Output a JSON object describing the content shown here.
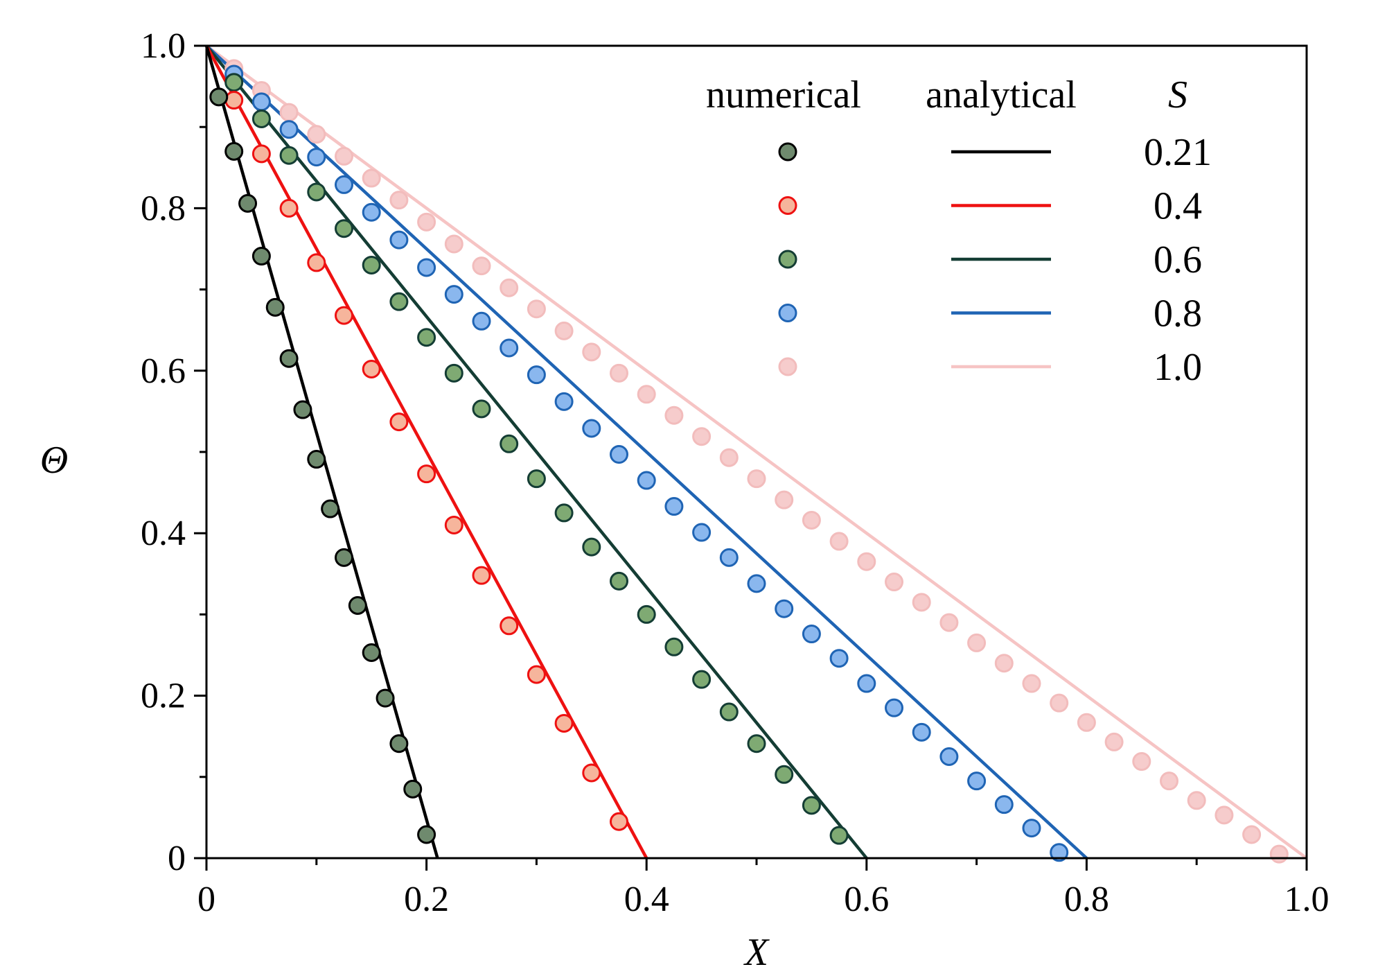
{
  "chart_data": {
    "type": "line",
    "xlabel": "X",
    "ylabel": "Θ",
    "xlim": [
      0,
      1.0
    ],
    "ylim": [
      0,
      1.0
    ],
    "x_major_ticks": [
      0,
      0.2,
      0.4,
      0.6,
      0.8,
      1.0
    ],
    "x_tick_labels": [
      "0",
      "0.2",
      "0.4",
      "0.6",
      "0.8",
      "1.0"
    ],
    "y_major_ticks": [
      0,
      0.2,
      0.4,
      0.6,
      0.8,
      1.0
    ],
    "y_tick_labels": [
      "0",
      "0.2",
      "0.4",
      "0.6",
      "0.8",
      "1.0"
    ],
    "x_minor_step": 0.1,
    "y_minor_step": 0.1,
    "grid": false,
    "legend": {
      "placement": "top-right",
      "headers": [
        "numerical",
        "analytical",
        "S"
      ]
    },
    "series": [
      {
        "S": "0.21",
        "line_color": "#000000",
        "marker_fill": "#6f8a6e",
        "marker_edge": "#000000",
        "analytical": {
          "x": [
            0,
            0.21
          ],
          "y": [
            1.0,
            0
          ]
        },
        "numerical": {
          "x": [
            0.0112,
            0.025,
            0.0375,
            0.05,
            0.0625,
            0.075,
            0.0875,
            0.1,
            0.1125,
            0.125,
            0.1375,
            0.15,
            0.1625,
            0.175,
            0.1875,
            0.2
          ],
          "y": [
            0.937,
            0.87,
            0.806,
            0.741,
            0.678,
            0.615,
            0.552,
            0.491,
            0.43,
            0.37,
            0.311,
            0.253,
            0.197,
            0.141,
            0.085,
            0.029
          ]
        }
      },
      {
        "S": "0.4",
        "line_color": "#ee1111",
        "marker_fill": "#f6b59c",
        "marker_edge": "#ee1111",
        "analytical": {
          "x": [
            0,
            0.4
          ],
          "y": [
            1.0,
            0
          ]
        },
        "numerical": {
          "x": [
            0.025,
            0.05,
            0.075,
            0.1,
            0.125,
            0.15,
            0.175,
            0.2,
            0.225,
            0.25,
            0.275,
            0.3,
            0.325,
            0.35,
            0.375
          ],
          "y": [
            0.933,
            0.867,
            0.8,
            0.733,
            0.668,
            0.602,
            0.537,
            0.473,
            0.41,
            0.348,
            0.286,
            0.226,
            0.166,
            0.105,
            0.045
          ]
        }
      },
      {
        "S": "0.6",
        "line_color": "#143d34",
        "marker_fill": "#7faa73",
        "marker_edge": "#143d34",
        "analytical": {
          "x": [
            0,
            0.6
          ],
          "y": [
            1.0,
            0
          ]
        },
        "numerical": {
          "x": [
            0.025,
            0.05,
            0.075,
            0.1,
            0.125,
            0.15,
            0.175,
            0.2,
            0.225,
            0.25,
            0.275,
            0.3,
            0.325,
            0.35,
            0.375,
            0.4,
            0.425,
            0.45,
            0.475,
            0.5,
            0.525,
            0.55,
            0.575
          ],
          "y": [
            0.955,
            0.91,
            0.865,
            0.82,
            0.775,
            0.73,
            0.685,
            0.641,
            0.597,
            0.553,
            0.51,
            0.467,
            0.425,
            0.383,
            0.341,
            0.3,
            0.26,
            0.22,
            0.18,
            0.141,
            0.103,
            0.065,
            0.028
          ]
        }
      },
      {
        "S": "0.8",
        "line_color": "#1f64b4",
        "marker_fill": "#8ab7ee",
        "marker_edge": "#1f64b4",
        "analytical": {
          "x": [
            0,
            0.8
          ],
          "y": [
            1.0,
            0
          ]
        },
        "numerical": {
          "x": [
            0.025,
            0.05,
            0.075,
            0.1,
            0.125,
            0.15,
            0.175,
            0.2,
            0.225,
            0.25,
            0.275,
            0.3,
            0.325,
            0.35,
            0.375,
            0.4,
            0.425,
            0.45,
            0.475,
            0.5,
            0.525,
            0.55,
            0.575,
            0.6,
            0.625,
            0.65,
            0.675,
            0.7,
            0.725,
            0.75,
            0.775
          ],
          "y": [
            0.965,
            0.931,
            0.897,
            0.863,
            0.829,
            0.795,
            0.761,
            0.727,
            0.694,
            0.661,
            0.628,
            0.595,
            0.562,
            0.529,
            0.497,
            0.465,
            0.433,
            0.401,
            0.37,
            0.338,
            0.307,
            0.276,
            0.246,
            0.215,
            0.185,
            0.155,
            0.125,
            0.095,
            0.066,
            0.037,
            0.007
          ]
        }
      },
      {
        "S": "1.0",
        "line_color": "#f6c4c4",
        "marker_fill": "#f6cccc",
        "marker_edge": "#f2bcbc",
        "analytical": {
          "x": [
            0,
            1.0
          ],
          "y": [
            1.0,
            0
          ]
        },
        "numerical": {
          "x": [
            0.025,
            0.05,
            0.075,
            0.1,
            0.125,
            0.15,
            0.175,
            0.2,
            0.225,
            0.25,
            0.275,
            0.3,
            0.325,
            0.35,
            0.375,
            0.4,
            0.425,
            0.45,
            0.475,
            0.5,
            0.525,
            0.55,
            0.575,
            0.6,
            0.625,
            0.65,
            0.675,
            0.7,
            0.725,
            0.75,
            0.775,
            0.8,
            0.825,
            0.85,
            0.875,
            0.9,
            0.925,
            0.95,
            0.975
          ],
          "y": [
            0.972,
            0.945,
            0.918,
            0.891,
            0.864,
            0.837,
            0.81,
            0.783,
            0.756,
            0.729,
            0.702,
            0.676,
            0.649,
            0.623,
            0.597,
            0.571,
            0.545,
            0.519,
            0.493,
            0.467,
            0.441,
            0.416,
            0.39,
            0.365,
            0.34,
            0.315,
            0.29,
            0.265,
            0.24,
            0.215,
            0.191,
            0.167,
            0.143,
            0.119,
            0.095,
            0.071,
            0.053,
            0.029,
            0.005
          ]
        }
      }
    ]
  }
}
